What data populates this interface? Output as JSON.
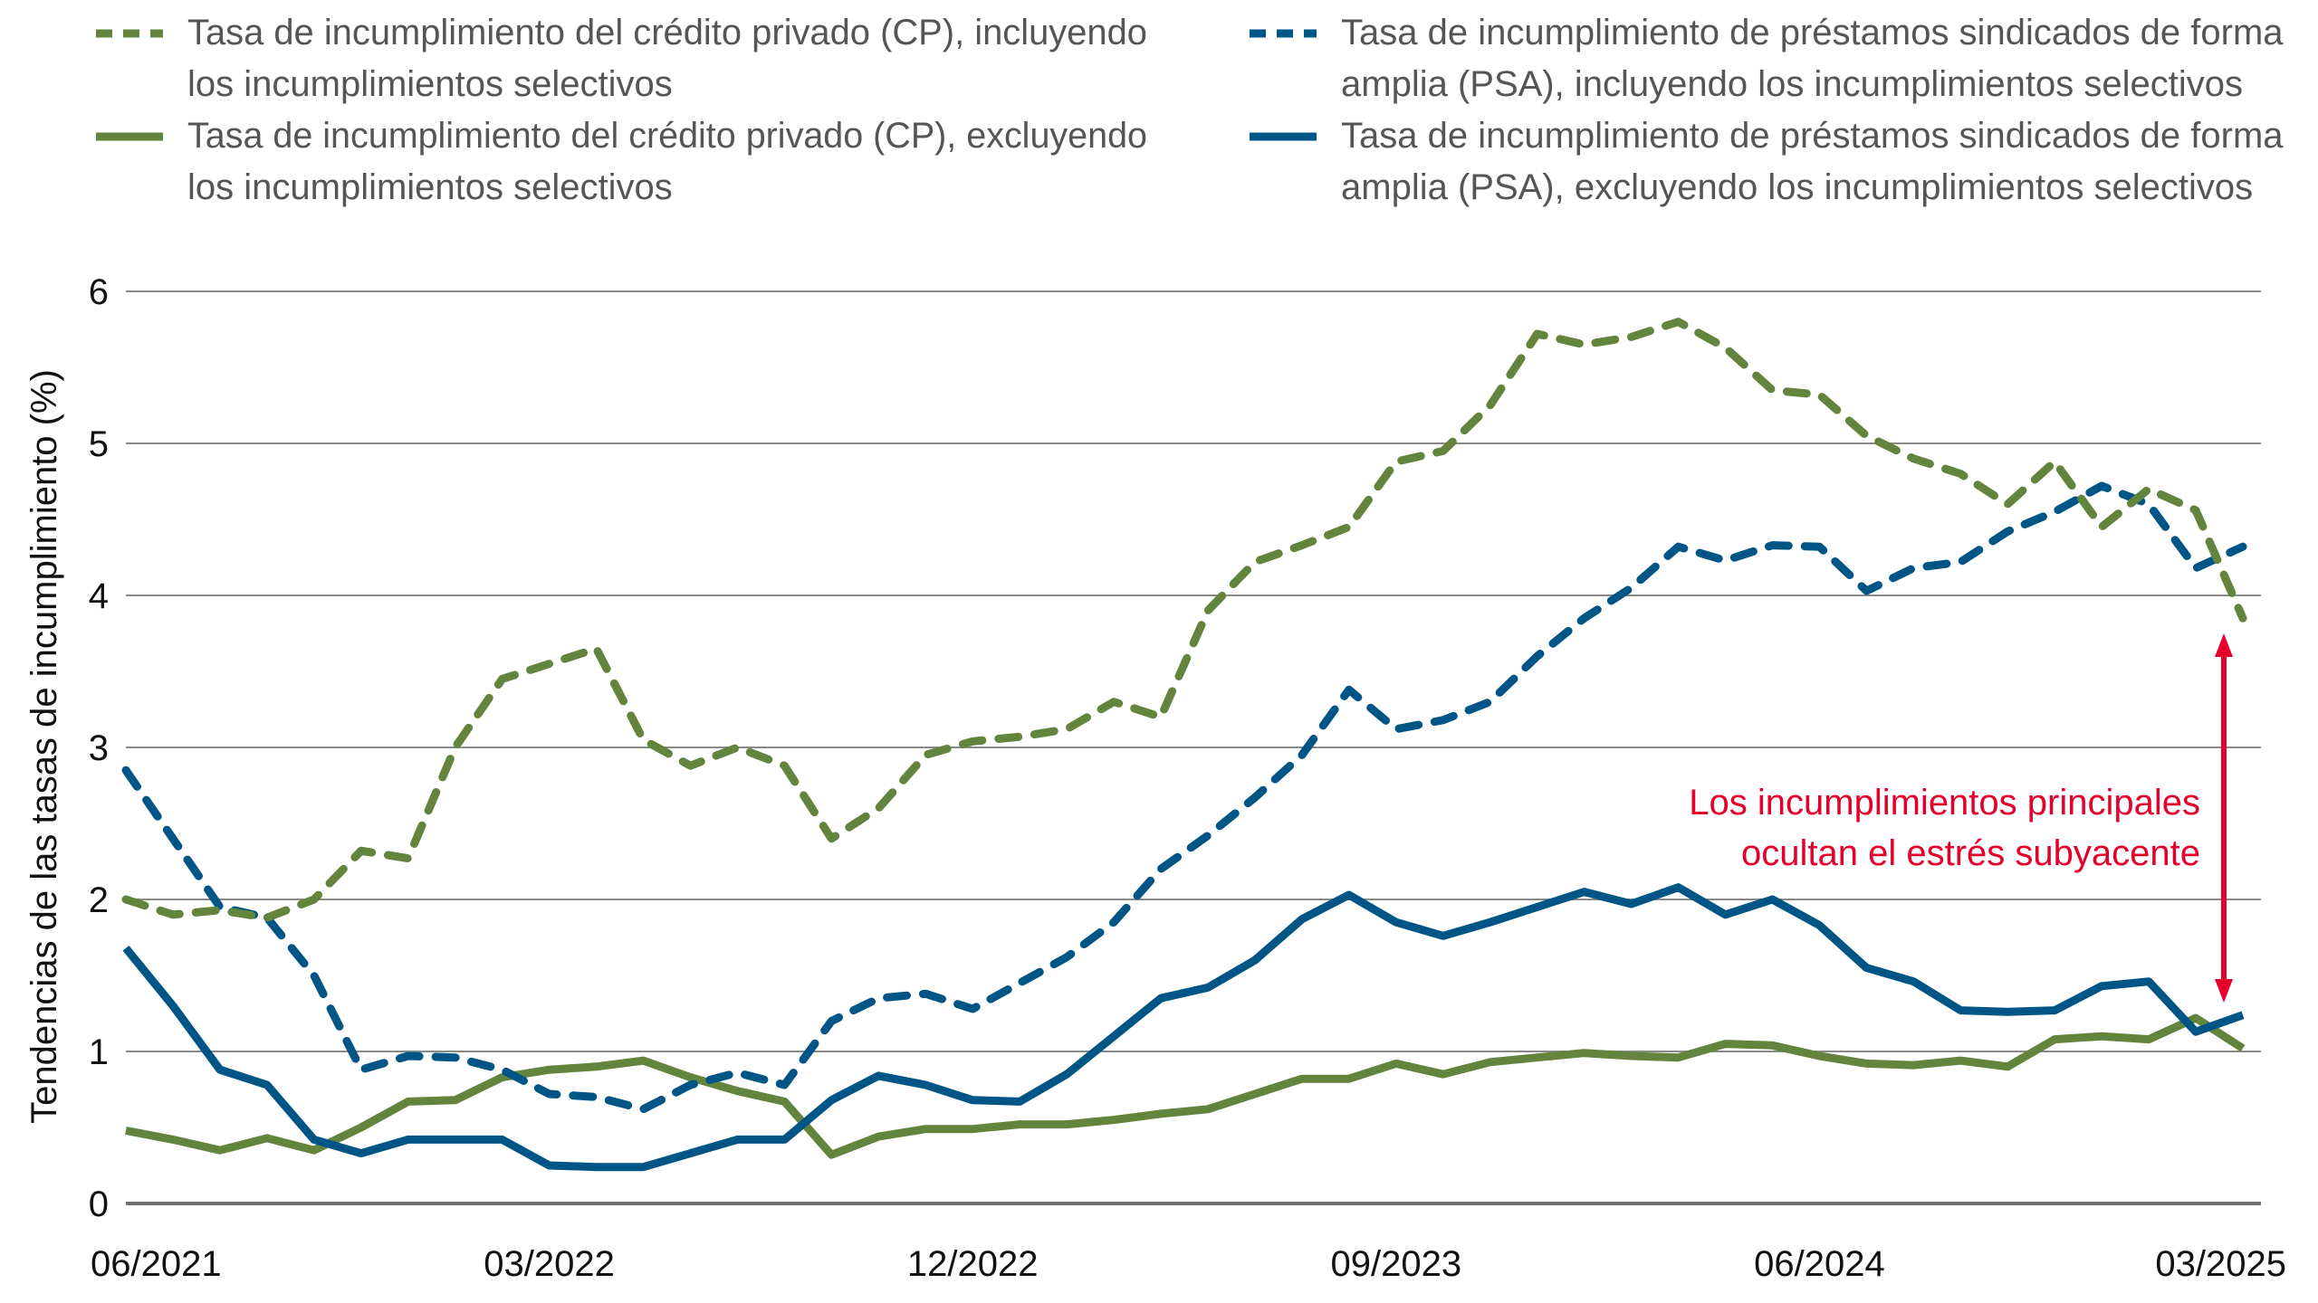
{
  "chart_data": {
    "type": "line",
    "title": "",
    "xlabel": "",
    "ylabel": "Tendencias de las tasas de incumplimiento (%)",
    "ylim": [
      0,
      6
    ],
    "yticks": [
      "0",
      "1",
      "2",
      "3",
      "4",
      "5",
      "6"
    ],
    "xticks": [
      "06/2021",
      "03/2022",
      "12/2022",
      "09/2023",
      "06/2024",
      "03/2025"
    ],
    "x_range": [
      "06/2021",
      "03/2025"
    ],
    "x_frequency": "monthly",
    "grid": "horizontal",
    "legend_position": "top",
    "colors": {
      "cp": "#63843d",
      "psa": "#005587",
      "annotation": "#e4002b"
    },
    "series": [
      {
        "name": "Tasa de incumplimiento del crédito privado (CP), incluyendo los incumplimientos selectivos",
        "legend_lines": [
          "Tasa de incumplimiento del crédito privado (CP), incluyendo",
          "los incumplimientos selectivos"
        ],
        "color": "#63843d",
        "style": "dashed",
        "values": [
          2.0,
          1.9,
          1.93,
          1.88,
          2.0,
          2.32,
          2.27,
          3.0,
          3.45,
          3.55,
          3.65,
          3.05,
          2.88,
          3.0,
          2.88,
          2.4,
          2.6,
          2.95,
          3.04,
          3.07,
          3.12,
          3.3,
          3.2,
          3.9,
          4.22,
          4.33,
          4.45,
          4.88,
          4.95,
          5.25,
          5.72,
          5.65,
          5.7,
          5.8,
          5.63,
          5.35,
          5.32,
          5.05,
          4.9,
          4.8,
          4.6,
          4.88,
          4.45,
          4.7,
          4.56,
          3.85
        ]
      },
      {
        "name": "Tasa de incumplimiento del crédito privado (CP), excluyendo los incumplimientos selectivos",
        "legend_lines": [
          "Tasa de incumplimiento del crédito privado (CP), excluyendo",
          "los incumplimientos selectivos"
        ],
        "color": "#63843d",
        "style": "solid",
        "values": [
          0.48,
          0.42,
          0.35,
          0.43,
          0.35,
          0.5,
          0.67,
          0.68,
          0.83,
          0.88,
          0.9,
          0.94,
          0.83,
          0.74,
          0.67,
          0.32,
          0.44,
          0.49,
          0.49,
          0.52,
          0.52,
          0.55,
          0.59,
          0.62,
          0.72,
          0.82,
          0.82,
          0.92,
          0.85,
          0.93,
          0.96,
          0.99,
          0.97,
          0.96,
          1.05,
          1.04,
          0.97,
          0.92,
          0.91,
          0.94,
          0.9,
          1.08,
          1.1,
          1.08,
          1.22,
          1.02
        ]
      },
      {
        "name": "Tasa de incumplimiento de préstamos sindicados de forma amplia (PSA), incluyendo los incumplimientos selectivos",
        "legend_lines": [
          "Tasa de incumplimiento de préstamos sindicados de forma",
          "amplia (PSA), incluyendo los incumplimientos selectivos"
        ],
        "color": "#005587",
        "style": "dashed",
        "values": [
          2.85,
          2.4,
          1.95,
          1.88,
          1.5,
          0.88,
          0.97,
          0.96,
          0.88,
          0.72,
          0.7,
          0.62,
          0.78,
          0.86,
          0.78,
          1.2,
          1.35,
          1.38,
          1.28,
          1.45,
          1.62,
          1.85,
          2.2,
          2.42,
          2.67,
          2.95,
          3.38,
          3.12,
          3.18,
          3.3,
          3.6,
          3.85,
          4.05,
          4.32,
          4.23,
          4.33,
          4.32,
          4.03,
          4.18,
          4.22,
          4.42,
          4.55,
          4.72,
          4.6,
          4.18,
          4.32
        ]
      },
      {
        "name": "Tasa de incumplimiento de préstamos sindicados de forma amplia (PSA), excluyendo los incumplimientos selectivos",
        "legend_lines": [
          "Tasa de incumplimiento de préstamos sindicados de forma",
          "amplia (PSA), excluyendo los incumplimientos selectivos"
        ],
        "color": "#005587",
        "style": "solid",
        "values": [
          1.68,
          1.3,
          0.88,
          0.78,
          0.42,
          0.33,
          0.42,
          0.42,
          0.42,
          0.25,
          0.24,
          0.24,
          0.33,
          0.42,
          0.42,
          0.68,
          0.84,
          0.78,
          0.68,
          0.67,
          0.85,
          1.1,
          1.35,
          1.42,
          1.6,
          1.87,
          2.03,
          1.85,
          1.76,
          1.85,
          1.95,
          2.05,
          1.97,
          2.08,
          1.9,
          2.0,
          1.83,
          1.55,
          1.46,
          1.27,
          1.26,
          1.27,
          1.43,
          1.46,
          1.13,
          1.24
        ]
      }
    ],
    "annotation": {
      "lines": [
        "Los incumplimientos principales",
        "ocultan el estrés subyacente"
      ],
      "arrow": "double-headed, at 03/2025, between CP including and excluding selective defaults"
    }
  }
}
